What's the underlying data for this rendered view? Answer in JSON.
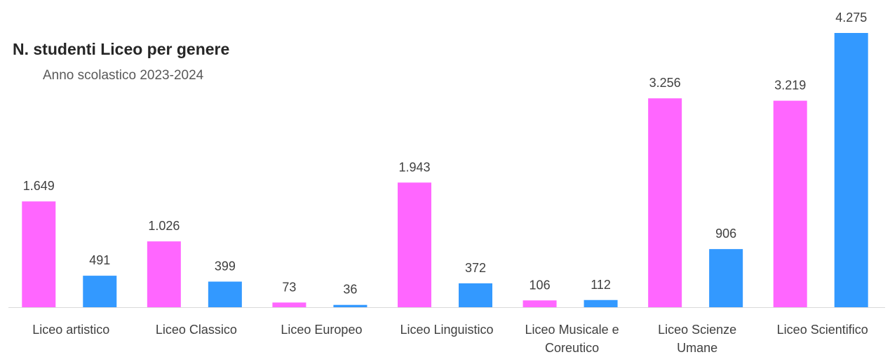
{
  "chart_data": {
    "type": "bar",
    "title": "N. studenti Liceo per genere",
    "subtitle": "Anno scolastico 2023-2024",
    "categories": [
      [
        "Liceo artistico"
      ],
      [
        "Liceo Classico"
      ],
      [
        "Liceo Europeo"
      ],
      [
        "Liceo Linguistico"
      ],
      [
        "Liceo Musicale e",
        "Coreutico"
      ],
      [
        "Liceo Scienze",
        "Umane"
      ],
      [
        "Liceo Scientifico"
      ]
    ],
    "series": [
      {
        "values": [
          1649,
          1026,
          73,
          1943,
          106,
          3256,
          3219
        ],
        "labels": [
          "1.649",
          "1.026",
          "73",
          "1.943",
          "106",
          "3.256",
          "3.219"
        ],
        "color": "#FF66FF"
      },
      {
        "values": [
          491,
          399,
          36,
          372,
          112,
          906,
          4275
        ],
        "labels": [
          "491",
          "399",
          "36",
          "372",
          "112",
          "906",
          "4.275"
        ],
        "color": "#3399FF"
      }
    ],
    "ylim": [
      0,
      4275
    ],
    "grid": false,
    "legend": "none"
  }
}
